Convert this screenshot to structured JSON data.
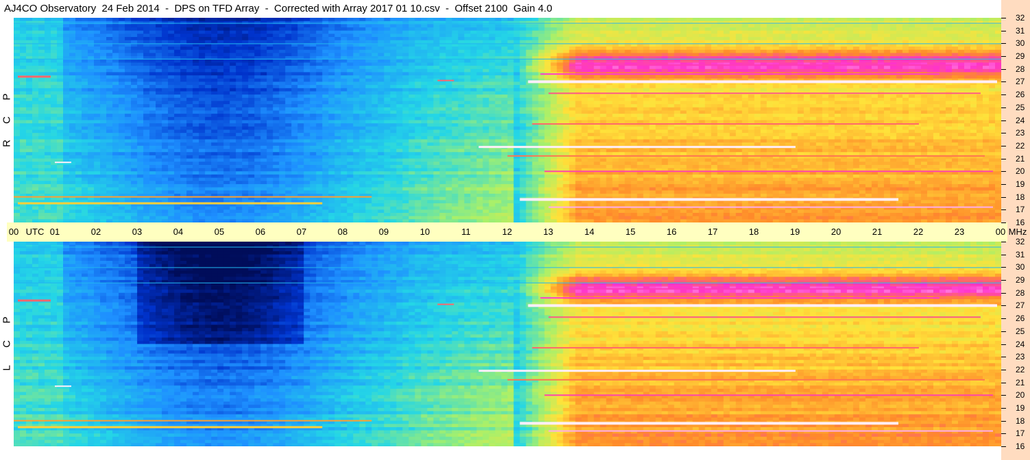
{
  "title": "AJ4CO Observatory  24 Feb 2014  -  DPS on TFD Array  -  Corrected with Array 2017 01 10.csv  -  Offset 2100  Gain 4.0",
  "chart_data": [
    {
      "type": "heatmap",
      "panel": "top",
      "polarization_label": [
        "R",
        "C",
        "P"
      ],
      "x_labels": [
        "00",
        "01",
        "02",
        "03",
        "04",
        "05",
        "06",
        "07",
        "08",
        "09",
        "10",
        "11",
        "12",
        "13",
        "14",
        "15",
        "16",
        "17",
        "18",
        "19",
        "20",
        "21",
        "22",
        "23",
        "00"
      ],
      "x_unit_label": "UTC",
      "y_ticks": [
        16,
        17,
        18,
        19,
        20,
        21,
        22,
        23,
        24,
        25,
        26,
        27,
        28,
        29,
        30,
        31,
        32
      ],
      "y_unit_label": "MHz",
      "ylim": [
        16,
        32
      ],
      "xlim_hours": [
        0,
        24
      ],
      "colormap": [
        "#000d5a",
        "#0033cc",
        "#1e90ff",
        "#24d6e6",
        "#a8f06a",
        "#ffe23a",
        "#ff8a2a",
        "#ff33cc",
        "#ffffff"
      ]
    },
    {
      "type": "heatmap",
      "panel": "bottom",
      "polarization_label": [
        "L",
        "C",
        "P"
      ],
      "y_ticks": [
        16,
        17,
        18,
        19,
        20,
        21,
        22,
        23,
        24,
        25,
        26,
        27,
        28,
        29,
        30,
        31,
        32
      ],
      "ylim": [
        16,
        32
      ],
      "xlim_hours": [
        0,
        24
      ],
      "colormap": [
        "#000d5a",
        "#0033cc",
        "#1e90ff",
        "#24d6e6",
        "#a8f06a",
        "#ffe23a",
        "#ff8a2a",
        "#ff33cc",
        "#ffffff"
      ]
    }
  ]
}
